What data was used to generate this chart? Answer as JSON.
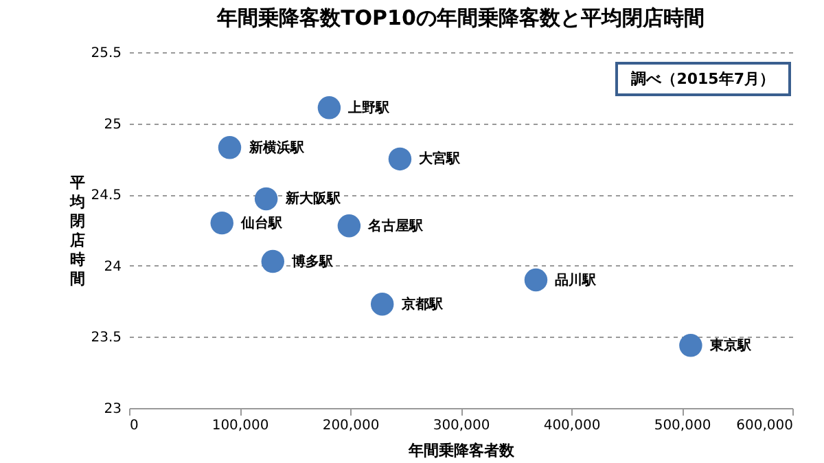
{
  "chart_data": {
    "type": "scatter",
    "title": "年間乗降客数TOP10の年間乗降客数と平均閉店時間",
    "xlabel": "年間乗降客者数",
    "ylabel": "平均閉店時間",
    "x": [
      181000,
      91000,
      245000,
      124000,
      84000,
      199000,
      130000,
      229000,
      368000,
      508000
    ],
    "series": [
      {
        "color": "#4a7ebf",
        "values": [
          25.11,
          24.83,
          24.75,
          24.47,
          24.3,
          24.28,
          24.03,
          23.73,
          23.9,
          23.44
        ]
      }
    ],
    "annotations": [
      {
        "text": "上野駅",
        "x": 181000,
        "y": 25.11
      },
      {
        "text": "新横浜駅",
        "x": 91000,
        "y": 24.83
      },
      {
        "text": "大宮駅",
        "x": 245000,
        "y": 24.75
      },
      {
        "text": "新大阪駅",
        "x": 124000,
        "y": 24.47
      },
      {
        "text": "仙台駅",
        "x": 84000,
        "y": 24.3
      },
      {
        "text": "名古屋駅",
        "x": 199000,
        "y": 24.28
      },
      {
        "text": "博多駅",
        "x": 130000,
        "y": 24.03
      },
      {
        "text": "京都駅",
        "x": 229000,
        "y": 23.73
      },
      {
        "text": "品川駅",
        "x": 368000,
        "y": 23.9
      },
      {
        "text": "東京駅",
        "x": 508000,
        "y": 23.44
      },
      "調べ（2015年7月）"
    ],
    "xlim": [
      0,
      600000
    ],
    "ylim": [
      23,
      25.5
    ],
    "xticks": [
      0,
      {
        "value": 100000,
        "label": "100,000"
      },
      {
        "value": 200000,
        "label": "200,000"
      },
      {
        "value": 300000,
        "label": "300,000"
      },
      {
        "value": 400000,
        "label": "400,000"
      },
      {
        "value": 500000,
        "label": "500,000"
      },
      {
        "value": 600000,
        "label": "600,000"
      }
    ],
    "yticks": [
      23,
      23.5,
      24,
      24.5,
      25,
      25.5
    ],
    "grid": "y",
    "marker": "circle",
    "legend": false
  }
}
